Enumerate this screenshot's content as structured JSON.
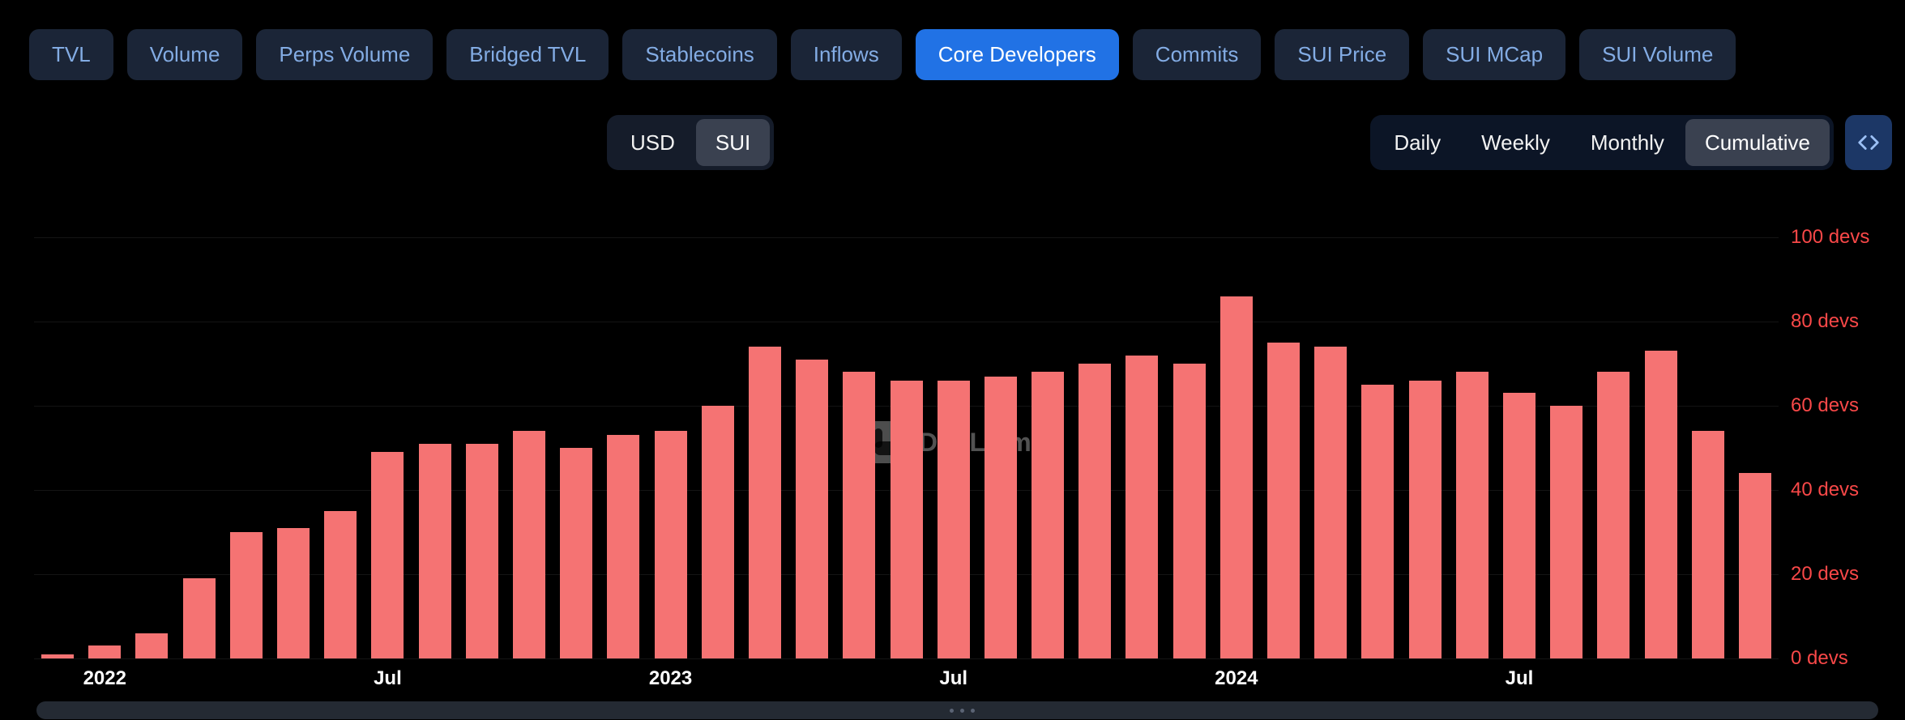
{
  "tabs": [
    {
      "label": "TVL",
      "active": false
    },
    {
      "label": "Volume",
      "active": false
    },
    {
      "label": "Perps Volume",
      "active": false
    },
    {
      "label": "Bridged TVL",
      "active": false
    },
    {
      "label": "Stablecoins",
      "active": false
    },
    {
      "label": "Inflows",
      "active": false
    },
    {
      "label": "Core Developers",
      "active": true
    },
    {
      "label": "Commits",
      "active": false
    },
    {
      "label": "SUI Price",
      "active": false
    },
    {
      "label": "SUI MCap",
      "active": false
    },
    {
      "label": "SUI Volume",
      "active": false
    }
  ],
  "currency_toggle": {
    "options": [
      "USD",
      "SUI"
    ],
    "selected": "SUI"
  },
  "interval_toggle": {
    "options": [
      "Daily",
      "Weekly",
      "Monthly",
      "Cumulative"
    ],
    "selected": "Cumulative"
  },
  "embed_button": {
    "icon": "code-icon"
  },
  "watermark": {
    "text": "DefiLlama"
  },
  "colors": {
    "background": "#000000",
    "tab_bg": "#1b2537",
    "tab_text": "#83ace4",
    "tab_active_bg": "#2172e5",
    "tab_active_text": "#ffffff",
    "seg_bg": "#151c2a",
    "seg_selected_bg": "#3a4150",
    "control_bg": "#0c1526",
    "embed_bg": "#1c3766",
    "embed_icon": "#9cc0f5",
    "bar": "#f57373",
    "y_label": "#f94848",
    "x_label": "#ffffff",
    "gridline": "rgba(255,255,255,0.08)",
    "brush_bg": "#242a33"
  },
  "chart_data": {
    "type": "bar",
    "unit": "devs",
    "x": [
      "Dec 2021",
      "Jan 2022",
      "Feb 2022",
      "Mar 2022",
      "Apr 2022",
      "May 2022",
      "Jun 2022",
      "Jul 2022",
      "Aug 2022",
      "Sep 2022",
      "Oct 2022",
      "Nov 2022",
      "Dec 2022",
      "Jan 2023",
      "Feb 2023",
      "Mar 2023",
      "Apr 2023",
      "May 2023",
      "Jun 2023",
      "Jul 2023",
      "Aug 2023",
      "Sep 2023",
      "Oct 2023",
      "Nov 2023",
      "Dec 2023",
      "Jan 2024",
      "Feb 2024",
      "Mar 2024",
      "Apr 2024",
      "May 2024",
      "Jun 2024",
      "Jul 2024",
      "Aug 2024",
      "Sep 2024",
      "Oct 2024",
      "Nov 2024",
      "Dec 2024"
    ],
    "values": [
      1,
      3,
      6,
      19,
      30,
      31,
      35,
      49,
      51,
      51,
      54,
      50,
      53,
      54,
      60,
      74,
      71,
      68,
      66,
      66,
      67,
      68,
      70,
      72,
      70,
      86,
      75,
      74,
      65,
      66,
      68,
      63,
      60,
      68,
      73,
      54,
      44
    ],
    "y_ticks": [
      {
        "value": 0,
        "label": "0 devs"
      },
      {
        "value": 20,
        "label": "20 devs"
      },
      {
        "value": 40,
        "label": "40 devs"
      },
      {
        "value": 60,
        "label": "60 devs"
      },
      {
        "value": 80,
        "label": "80 devs"
      },
      {
        "value": 100,
        "label": "100 devs"
      }
    ],
    "x_tick_labels": [
      {
        "index": 1,
        "label": "2022"
      },
      {
        "index": 7,
        "label": "Jul"
      },
      {
        "index": 13,
        "label": "2023"
      },
      {
        "index": 19,
        "label": "Jul"
      },
      {
        "index": 25,
        "label": "2024"
      },
      {
        "index": 31,
        "label": "Jul"
      }
    ],
    "ylim": [
      0,
      108
    ],
    "grid": true,
    "legend_position": "none"
  }
}
